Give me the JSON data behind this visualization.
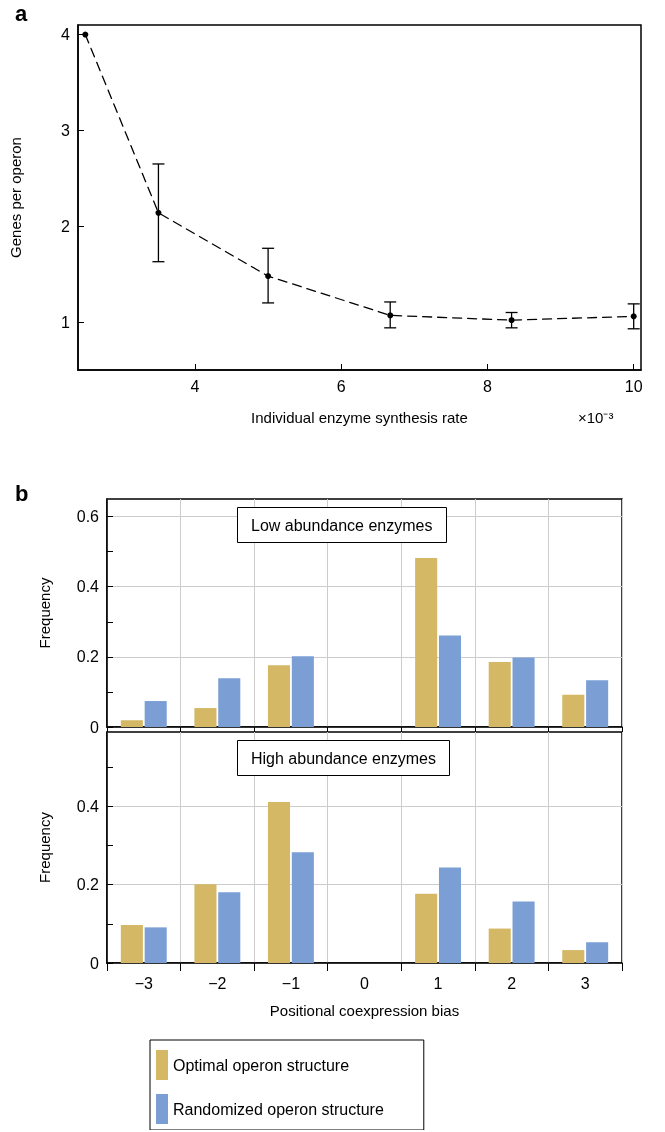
{
  "chart_data": [
    {
      "type": "line",
      "xlabel": "Individual enzyme synthesis rate",
      "ylabel": "Genes per operon",
      "annotations": [
        "a",
        "×10⁻³"
      ],
      "x": [
        2.5,
        3.5,
        5,
        6.67,
        8.33,
        10
      ],
      "series": [
        {
          "color": "#000000",
          "values": [
            4.0,
            2.14,
            1.48,
            1.07,
            1.02,
            1.06
          ],
          "errors": [
            null,
            [
              1.63,
              2.65
            ],
            [
              1.2,
              1.77
            ],
            [
              0.94,
              1.21
            ],
            [
              0.94,
              1.1
            ],
            [
              0.93,
              1.19
            ]
          ]
        }
      ],
      "xlim": [
        2.4,
        10.1
      ],
      "xticks": [
        4,
        6,
        8,
        10
      ],
      "ylim": [
        0.5,
        4.1
      ],
      "yticks": [
        1,
        2,
        3,
        4
      ],
      "grid": false,
      "marker": "circle",
      "line_style": "dashed"
    },
    {
      "type": "bar",
      "title": "Low abundance enzymes",
      "ylabel": "Frequency",
      "annotations": [
        "b"
      ],
      "categories": [
        "−3",
        "−2",
        "−1",
        "0",
        "1",
        "2",
        "3"
      ],
      "series": [
        {
          "color": "#d4b866",
          "values": [
            0.019,
            0.054,
            0.176,
            0,
            0.482,
            0.185,
            0.092
          ]
        },
        {
          "color": "#7b9fd4",
          "values": [
            0.074,
            0.139,
            0.202,
            0,
            0.261,
            0.198,
            0.133
          ]
        }
      ],
      "ylim": [
        0,
        0.65
      ],
      "yticks": [
        0,
        {
          "value": 0.1,
          "label": null
        },
        0.2,
        {
          "value": 0.3,
          "label": null
        },
        0.4,
        {
          "value": 0.5,
          "label": null
        },
        0.6
      ],
      "grid": true,
      "tick_labels": "y"
    },
    {
      "type": "bar",
      "title": "High abundance enzymes",
      "xlabel": "Positional coexpression bias",
      "ylabel": "Frequency",
      "categories": [
        "−3",
        "−2",
        "−1",
        "0",
        "1",
        "2",
        "3"
      ],
      "series": [
        {
          "name": "Optimal operon structure",
          "color": "#d4b866",
          "values": [
            0.097,
            0.201,
            0.411,
            0,
            0.177,
            0.088,
            0.033
          ]
        },
        {
          "name": "Randomized operon structure",
          "color": "#7b9fd4",
          "values": [
            0.091,
            0.181,
            0.283,
            0,
            0.244,
            0.157,
            0.053
          ]
        }
      ],
      "ylim": [
        0,
        0.59
      ],
      "yticks": [
        0,
        {
          "value": 0.1,
          "label": null
        },
        0.2,
        {
          "value": 0.3,
          "label": null
        },
        0.4,
        {
          "value": 0.5,
          "label": null
        }
      ],
      "grid": true,
      "legend": "bottom"
    }
  ]
}
